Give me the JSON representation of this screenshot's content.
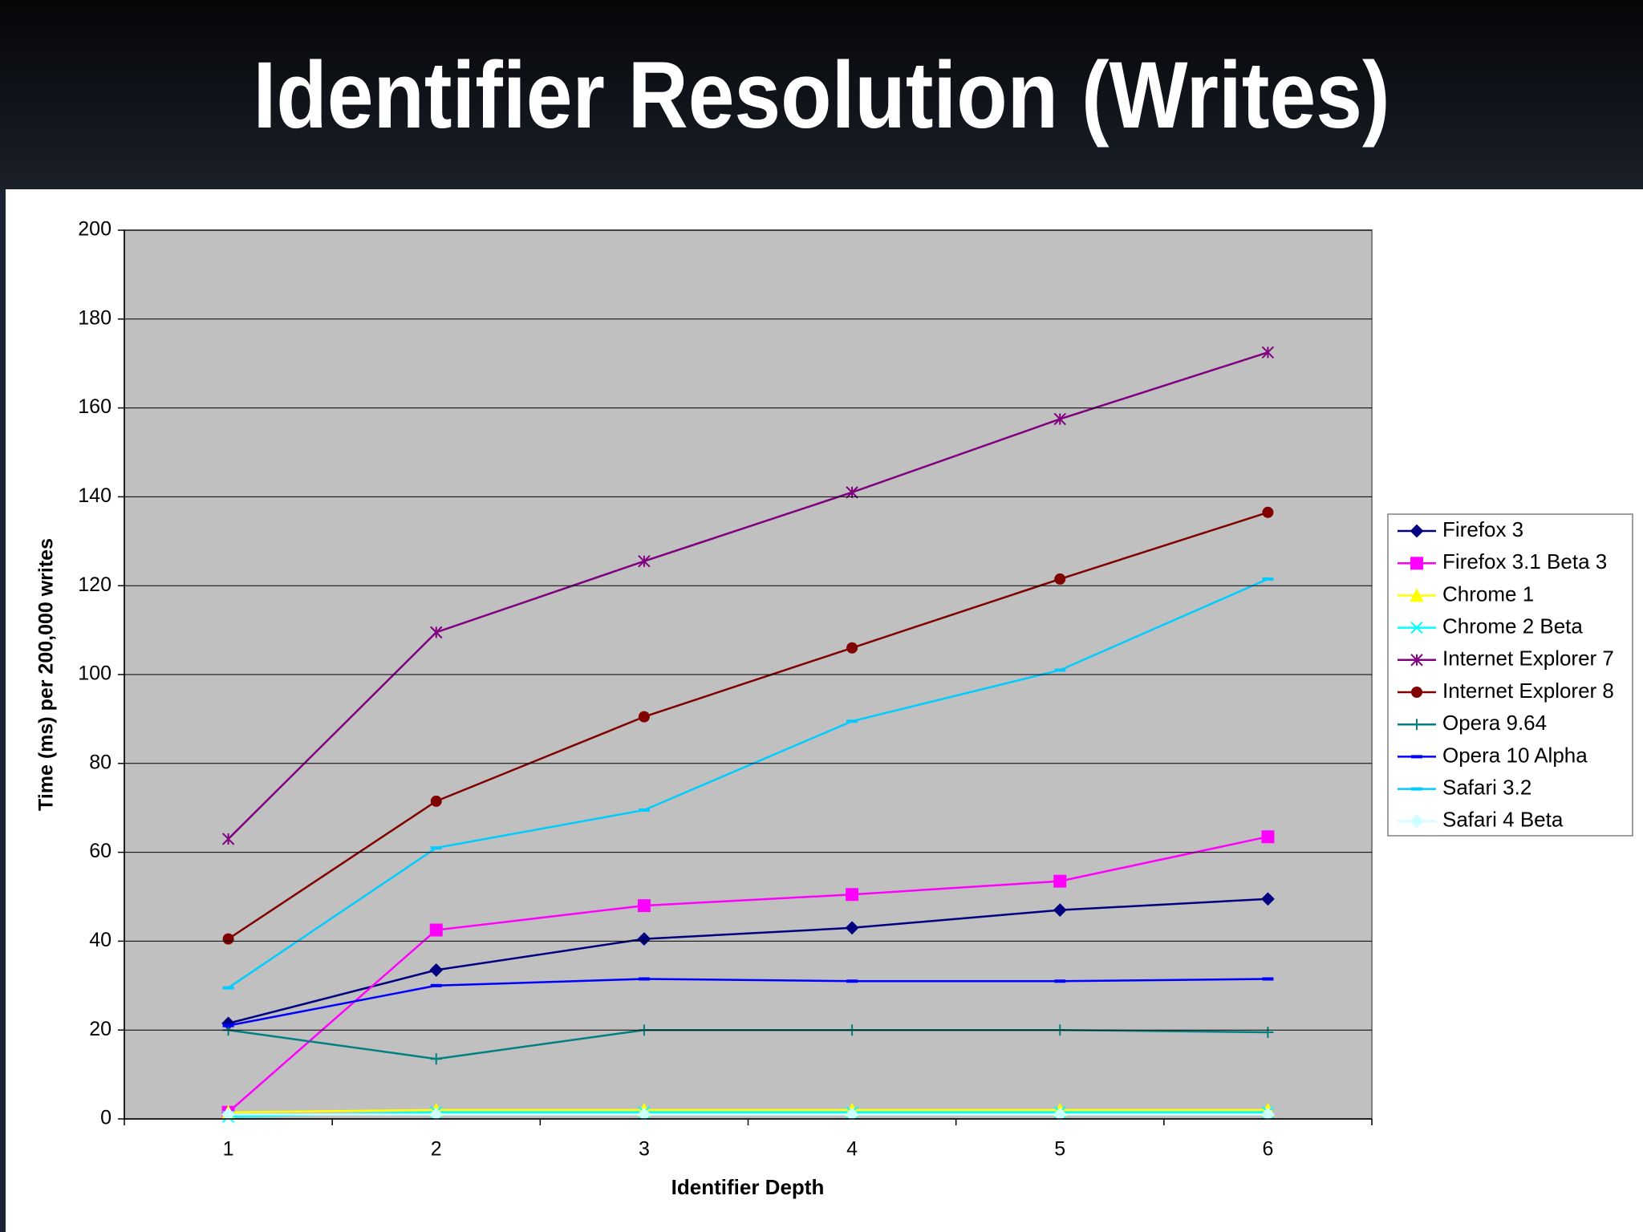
{
  "chart_data": {
    "type": "line",
    "title": "Identifier Resolution (Writes)",
    "x_label": "Identifier Depth",
    "y_label": "Time (ms) per 200,000 writes",
    "categories": [
      "1",
      "2",
      "3",
      "4",
      "5",
      "6"
    ],
    "ylim": [
      0,
      200
    ],
    "yticks": [
      0,
      20,
      40,
      60,
      80,
      100,
      120,
      140,
      160,
      180,
      200
    ],
    "grid": true,
    "legend": "right",
    "series": [
      {
        "name": "Firefox 3",
        "color": "#000080",
        "marker": "diamond",
        "values": [
          21.5,
          33.5,
          40.5,
          43,
          47,
          49.5
        ]
      },
      {
        "name": "Firefox 3.1 Beta 3",
        "color": "#ff00ff",
        "marker": "square",
        "values": [
          1.5,
          42.5,
          48,
          50.5,
          53.5,
          63.5
        ]
      },
      {
        "name": "Chrome 1",
        "color": "#ffff00",
        "marker": "triangle",
        "values": [
          1.5,
          2,
          2,
          2,
          2,
          2
        ]
      },
      {
        "name": "Chrome 2 Beta",
        "color": "#00ffff",
        "marker": "x",
        "values": [
          0.5,
          1.5,
          1.5,
          1.5,
          1.5,
          1.5
        ]
      },
      {
        "name": "Internet Explorer 7",
        "color": "#800080",
        "marker": "star",
        "values": [
          63,
          109.5,
          125.5,
          141,
          157.5,
          172.5
        ]
      },
      {
        "name": "Internet Explorer 8",
        "color": "#800000",
        "marker": "circle",
        "values": [
          40.5,
          71.5,
          90.5,
          106,
          121.5,
          136.5
        ]
      },
      {
        "name": "Opera 9.64",
        "color": "#008080",
        "marker": "plus",
        "values": [
          20,
          13.5,
          20,
          20,
          20,
          19.5
        ]
      },
      {
        "name": "Opera 10 Alpha",
        "color": "#0000ff",
        "marker": "dash",
        "values": [
          21,
          30,
          31.5,
          31,
          31,
          31.5
        ]
      },
      {
        "name": "Safari 3.2",
        "color": "#00ccff",
        "marker": "dash",
        "values": [
          29.5,
          61,
          69.5,
          89.5,
          101,
          121.5
        ]
      },
      {
        "name": "Safari 4 Beta",
        "color": "#ccffff",
        "marker": "diamond",
        "values": [
          1,
          1,
          1,
          1,
          1,
          1
        ]
      }
    ]
  }
}
